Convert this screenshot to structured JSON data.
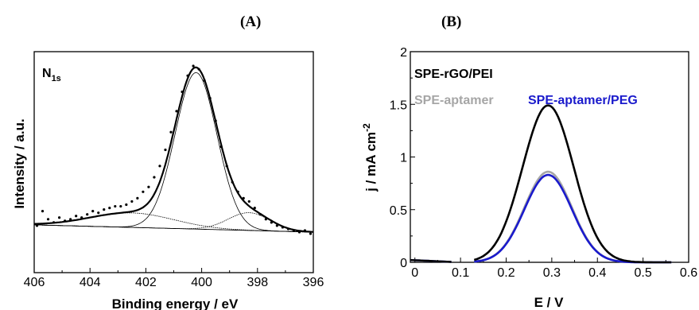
{
  "panels": {
    "a_label": "(A)",
    "b_label": "(B)"
  },
  "chart_data": [
    {
      "type": "scatter",
      "panel": "(A)",
      "annotation_main": "N",
      "annotation_sub": "1s",
      "xlabel": "Binding energy / eV",
      "ylabel": "Intensity / a.u.",
      "xlim": [
        406,
        396
      ],
      "x_reversed": true,
      "y_ticks_shown": false,
      "x_ticks": [
        "406",
        "404",
        "402",
        "400",
        "398",
        "396"
      ],
      "baseline": {
        "x": [
          406,
          396
        ],
        "y": [
          0.035,
          -0.01
        ]
      },
      "peaks": [
        {
          "center": 400.2,
          "height": 0.97,
          "width": 0.75
        },
        {
          "center": 402.5,
          "height": 0.09,
          "width": 1.5
        },
        {
          "center": 398.3,
          "height": 0.11,
          "width": 0.75
        }
      ],
      "data_points_x": [
        405.9,
        405.7,
        405.5,
        405.3,
        405.1,
        404.9,
        404.7,
        404.5,
        404.3,
        404.1,
        403.9,
        403.7,
        403.5,
        403.3,
        403.1,
        402.9,
        402.7,
        402.5,
        402.3,
        402.1,
        401.9,
        401.7,
        401.5,
        401.3,
        401.1,
        400.9,
        400.7,
        400.5,
        400.3,
        400.1,
        399.9,
        399.7,
        399.5,
        399.3,
        399.1,
        398.9,
        398.7,
        398.5,
        398.3,
        398.1,
        397.9,
        397.7,
        397.5,
        397.3,
        397.1,
        396.9,
        396.7,
        396.5,
        396.3,
        396.1
      ],
      "data_points_y": [
        0.03,
        0.12,
        0.07,
        0.05,
        0.08,
        0.06,
        0.07,
        0.09,
        0.08,
        0.1,
        0.12,
        0.11,
        0.13,
        0.14,
        0.15,
        0.15,
        0.16,
        0.18,
        0.2,
        0.24,
        0.27,
        0.33,
        0.4,
        0.5,
        0.61,
        0.74,
        0.86,
        0.96,
        1.02,
        1.0,
        0.93,
        0.82,
        0.68,
        0.52,
        0.4,
        0.3,
        0.24,
        0.2,
        0.18,
        0.14,
        0.1,
        0.07,
        0.05,
        0.03,
        0.02,
        0.01,
        0.0,
        -0.01,
        0.0,
        -0.02
      ]
    },
    {
      "type": "line",
      "panel": "(B)",
      "xlabel": "E / V",
      "ylabel": "j / mA cm-2",
      "ylabel_main": "j / mA cm",
      "ylabel_sup": "-2",
      "xlim": [
        -0.01,
        0.6
      ],
      "ylim": [
        0,
        2
      ],
      "x_ticks": [
        0,
        0.1,
        0.2,
        0.3,
        0.4,
        0.5,
        0.6
      ],
      "x_tick_labels": [
        "0",
        "0.1",
        "0.2",
        "0.3",
        "0.4",
        "0.5",
        "0.6"
      ],
      "y_ticks": [
        0,
        0.5,
        1,
        1.5,
        2
      ],
      "y_tick_labels": [
        "0",
        "0.5",
        "1",
        "1.5",
        "2"
      ],
      "legend": "top-left",
      "series": [
        {
          "name": "SPE-rGO/PEI",
          "color": "#000000",
          "peak_x": 0.292,
          "peak_y": 1.49,
          "sigma": 0.056,
          "onset": 0.13,
          "offset": 0.565
        },
        {
          "name": "SPE-aptamer",
          "color": "#a6a6a6",
          "peak_x": 0.292,
          "peak_y": 0.86,
          "sigma": 0.052,
          "onset": 0.13,
          "offset": 0.565
        },
        {
          "name": "SPE-aptamer/PEG",
          "color": "#1a1acc",
          "peak_x": 0.292,
          "peak_y": 0.83,
          "sigma": 0.052,
          "onset": 0.13,
          "offset": 0.565
        }
      ]
    }
  ]
}
